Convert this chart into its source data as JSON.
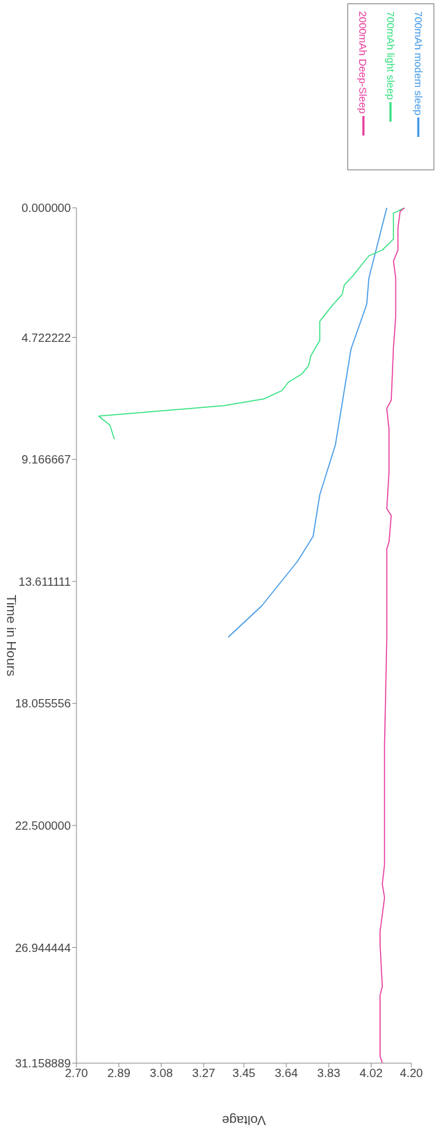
{
  "chart_data": {
    "type": "line",
    "xlabel": "Voltage",
    "ylabel": "Time in Hours",
    "xlim": [
      2.7,
      4.2
    ],
    "ylim": [
      31.158889,
      0
    ],
    "xticks": [
      {
        "value": 2.7,
        "label": "2.70"
      },
      {
        "value": 2.89,
        "label": "2.89"
      },
      {
        "value": 3.08,
        "label": "3.08"
      },
      {
        "value": 3.27,
        "label": "3.27"
      },
      {
        "value": 3.45,
        "label": "3.45"
      },
      {
        "value": 3.64,
        "label": "3.64"
      },
      {
        "value": 3.83,
        "label": "3.83"
      },
      {
        "value": 4.02,
        "label": "4.02"
      },
      {
        "value": 4.2,
        "label": "4.20"
      }
    ],
    "yticks": [
      {
        "value": 0,
        "label": "0.000000"
      },
      {
        "value": 4.722222,
        "label": "4.722222"
      },
      {
        "value": 9.166667,
        "label": "9.166667"
      },
      {
        "value": 13.611111,
        "label": "13.611111"
      },
      {
        "value": 18.055556,
        "label": "18.055556"
      },
      {
        "value": 22.5,
        "label": "22.500000"
      },
      {
        "value": 26.944444,
        "label": "26.944444"
      },
      {
        "value": 31.158889,
        "label": "31.158889"
      }
    ],
    "legend": "top right",
    "series": [
      {
        "name": "700mAh modem sleep",
        "color": "#3d96e6",
        "values": [
          0,
          2.56,
          3.52,
          5.14,
          8.63,
          10.45,
          11.97,
          12.88,
          14.5,
          15.64
        ],
        "x": [
          4.09,
          4.01,
          4.0,
          3.93,
          3.86,
          3.79,
          3.76,
          3.69,
          3.53,
          3.38
        ]
      },
      {
        "name": "700mAh light sleep",
        "color": "#33e07f",
        "values": [
          0,
          0.2,
          1.14,
          1.54,
          1.75,
          2.46,
          2.81,
          3.16,
          3.52,
          4.13,
          4.48,
          4.83,
          5.39,
          5.75,
          6.05,
          6.35,
          6.66,
          6.96,
          7.21,
          7.59,
          7.92,
          8.43
        ],
        "x": [
          4.17,
          4.12,
          4.12,
          4.07,
          4.01,
          3.94,
          3.9,
          3.89,
          3.85,
          3.79,
          3.79,
          3.79,
          3.75,
          3.74,
          3.71,
          3.65,
          3.62,
          3.54,
          3.36,
          2.8,
          2.85,
          2.87
        ]
      },
      {
        "name": "2000mAh Deep-Sleep",
        "color": "#e6399b",
        "values": [
          0,
          0.13,
          0.73,
          1.04,
          1.54,
          1.95,
          2.56,
          3.97,
          5.09,
          7.01,
          7.31,
          8.07,
          9.64,
          10.96,
          11.21,
          12.17,
          12.43,
          14.5,
          15.72,
          19.56,
          21.29,
          23.92,
          24.63,
          25.13,
          26.35,
          26.85,
          28.37,
          28.68,
          29.69,
          30.9,
          31.15
        ],
        "x": [
          4.17,
          4.15,
          4.14,
          4.14,
          4.14,
          4.12,
          4.13,
          4.13,
          4.12,
          4.11,
          4.09,
          4.1,
          4.1,
          4.09,
          4.11,
          4.1,
          4.09,
          4.09,
          4.09,
          4.08,
          4.08,
          4.08,
          4.07,
          4.08,
          4.06,
          4.06,
          4.07,
          4.06,
          4.06,
          4.06,
          4.07
        ]
      }
    ]
  }
}
